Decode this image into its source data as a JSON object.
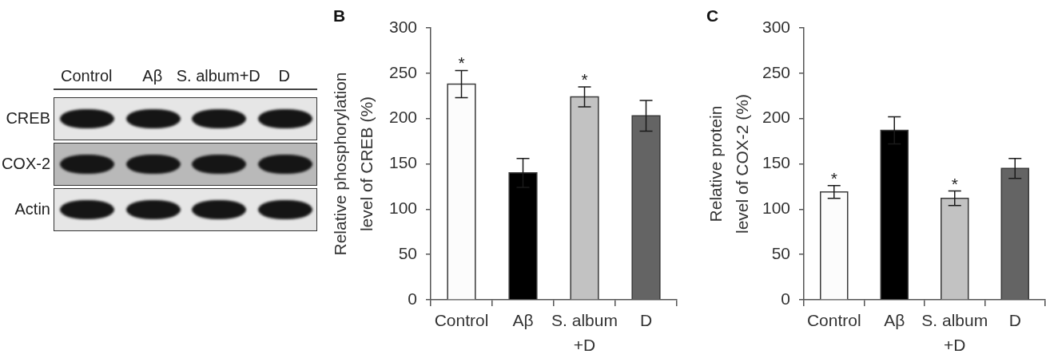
{
  "chart_data": [
    {
      "type": "other",
      "categories": [
        "Control",
        "Aβ",
        "S. album+D",
        "D"
      ],
      "annotations": [
        "CREB",
        "COX-2",
        "Actin"
      ]
    },
    {
      "type": "bar",
      "title": "B",
      "ylabel": "Relative phosphorylation\nlevel of CREB (%)",
      "categories": [
        "Control",
        "Aβ",
        "S. album\n+D",
        "D"
      ],
      "values": [
        238,
        140,
        224,
        203
      ],
      "errors": [
        15,
        16,
        11,
        17
      ],
      "value_labels": [
        "*",
        null,
        "*",
        null
      ],
      "colors": [
        "#fcfcfc",
        "#000000",
        "#c2c2c2",
        "#646464"
      ],
      "ylim": [
        0,
        300
      ],
      "yticks": [
        0,
        50,
        100,
        150,
        200,
        250,
        300
      ]
    },
    {
      "type": "bar",
      "title": "C",
      "ylabel": "Relative protein\nlevel of COX-2 (%)",
      "categories": [
        "Control",
        "Aβ",
        "S. album\n+D",
        "D"
      ],
      "values": [
        119,
        187,
        112,
        145
      ],
      "errors": [
        7,
        15,
        8,
        11
      ],
      "value_labels": [
        "*",
        null,
        "*",
        null
      ],
      "colors": [
        "#fcfcfc",
        "#000000",
        "#c2c2c2",
        "#646464"
      ],
      "ylim": [
        0,
        300
      ],
      "yticks": [
        0,
        50,
        100,
        150,
        200,
        250,
        300
      ]
    }
  ]
}
